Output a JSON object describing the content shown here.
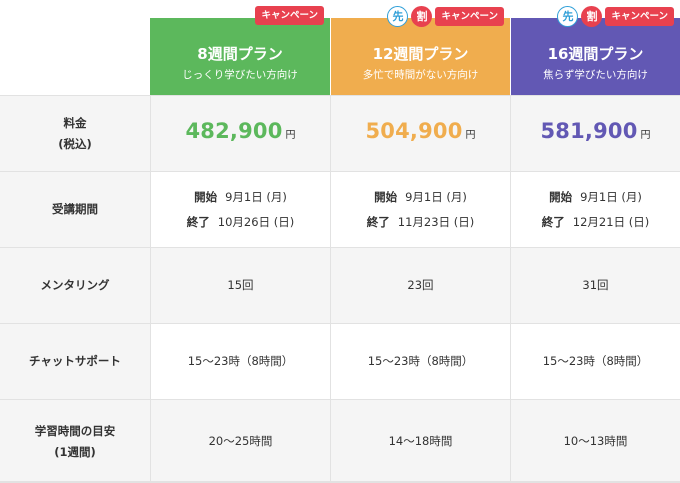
{
  "plans": [
    {
      "name": "8週間プラン",
      "subtitle": "じっくり学びたい方向け",
      "badge": "キャンペーン",
      "early_marks": [],
      "color": "#5cb85c",
      "price": "482,900",
      "price_unit": "円",
      "start_label": "開始",
      "start_date": "9月1日 (月)",
      "end_label": "終了",
      "end_date": "10月26日 (日)",
      "mentoring": "15回",
      "chat_support": "15〜23時（8時間）",
      "study_hours": "20〜25時間"
    },
    {
      "name": "12週間プラン",
      "subtitle": "多忙で時間がない方向け",
      "badge": "キャンペーン",
      "early_marks": [
        "先",
        "割"
      ],
      "color": "#f0ad4e",
      "price": "504,900",
      "price_unit": "円",
      "start_label": "開始",
      "start_date": "9月1日 (月)",
      "end_label": "終了",
      "end_date": "11月23日 (日)",
      "mentoring": "23回",
      "chat_support": "15〜23時（8時間）",
      "study_hours": "14〜18時間"
    },
    {
      "name": "16週間プラン",
      "subtitle": "焦らず学びたい方向け",
      "badge": "キャンペーン",
      "early_marks": [
        "先",
        "割"
      ],
      "color": "#6258b4",
      "price": "581,900",
      "price_unit": "円",
      "start_label": "開始",
      "start_date": "9月1日 (月)",
      "end_label": "終了",
      "end_date": "12月21日 (日)",
      "mentoring": "31回",
      "chat_support": "15〜23時（8時間）",
      "study_hours": "10〜13時間"
    }
  ],
  "row_labels": {
    "price_line1": "料金",
    "price_line2": "(税込)",
    "period": "受講期間",
    "mentoring": "メンタリング",
    "chat_support": "チャットサポート",
    "study_line1": "学習時間の目安",
    "study_line2": "(1週間)"
  }
}
